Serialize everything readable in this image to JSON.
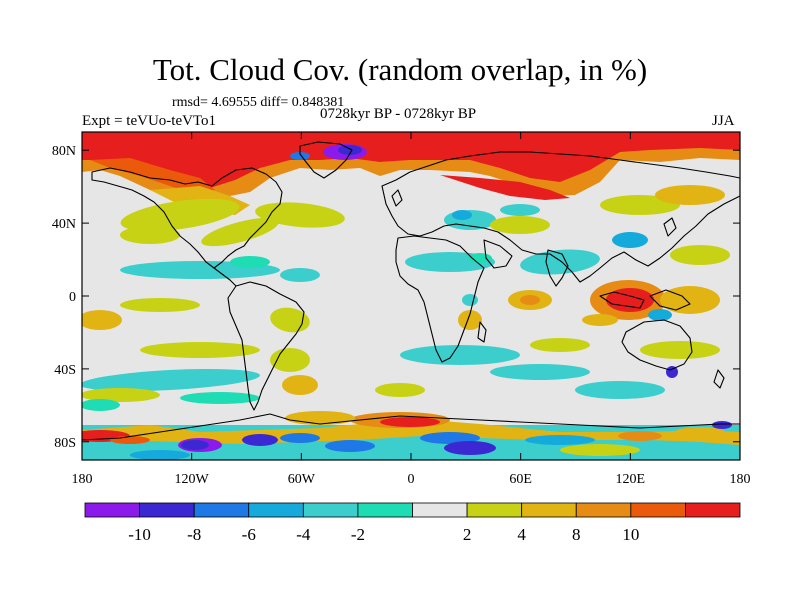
{
  "title": "Tot. Cloud Cov. (random overlap, in %)",
  "stats_text": "rmsd= 4.69555 diff= 0.848381",
  "left_label": "Expt = teVUo-teVTo1",
  "center_label": "0728kyr BP - 0728kyr BP",
  "right_label": "JJA",
  "map": {
    "lon_ticks": [
      {
        "lon": -180,
        "label": "180"
      },
      {
        "lon": -120,
        "label": "120W"
      },
      {
        "lon": -60,
        "label": "60W"
      },
      {
        "lon": 0,
        "label": "0"
      },
      {
        "lon": 60,
        "label": "60E"
      },
      {
        "lon": 120,
        "label": "120E"
      },
      {
        "lon": 180,
        "label": "180"
      }
    ],
    "lat_ticks": [
      {
        "lat": 80,
        "label": "80N"
      },
      {
        "lat": 40,
        "label": "40N"
      },
      {
        "lat": 0,
        "label": "0"
      },
      {
        "lat": -40,
        "label": "40S"
      },
      {
        "lat": -80,
        "label": "80S"
      }
    ],
    "lon_range": [
      -180,
      180
    ],
    "lat_range": [
      -90,
      90
    ],
    "background_color": "#e6e6e6"
  },
  "colorbar": {
    "colors": [
      "#8c1aeb",
      "#3c28d2",
      "#1e78e6",
      "#14aadc",
      "#3ccdcd",
      "#1edcb4",
      "#e6e6e6",
      "#c8d214",
      "#e1b414",
      "#e68c14",
      "#eb5a0a",
      "#e61e1e"
    ],
    "labels": [
      "-10",
      "-8",
      "-6",
      "-4",
      "-2",
      "2",
      "4",
      "8",
      "10"
    ]
  }
}
